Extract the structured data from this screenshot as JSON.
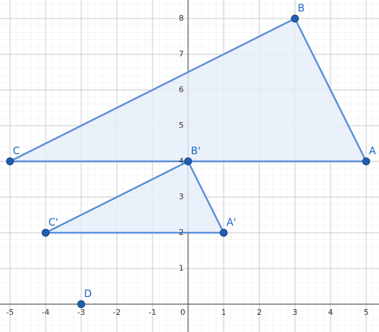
{
  "chart_data": {
    "type": "geometry",
    "xlim": [
      -5.28,
      5.36
    ],
    "ylim": [
      -0.78,
      8.52
    ],
    "xticks": [
      -5,
      -4,
      -3,
      -2,
      -1,
      0,
      1,
      2,
      3,
      4,
      5
    ],
    "yticks": [
      1,
      2,
      3,
      4,
      5,
      6,
      7,
      8
    ],
    "grid": true,
    "color": "#1e5fb4",
    "line_color": "#5b8fd8",
    "fill_color": "#e6eef9",
    "points": [
      {
        "name": "A",
        "x": 5,
        "y": 4
      },
      {
        "name": "B",
        "x": 3,
        "y": 8
      },
      {
        "name": "C",
        "x": -5,
        "y": 4
      },
      {
        "name": "A'",
        "x": 1,
        "y": 2
      },
      {
        "name": "B'",
        "x": 0,
        "y": 4
      },
      {
        "name": "C'",
        "x": -4,
        "y": 2
      },
      {
        "name": "D",
        "x": -3,
        "y": 0
      }
    ],
    "polygons": [
      [
        0,
        1,
        2
      ],
      [
        3,
        4,
        5
      ]
    ]
  }
}
